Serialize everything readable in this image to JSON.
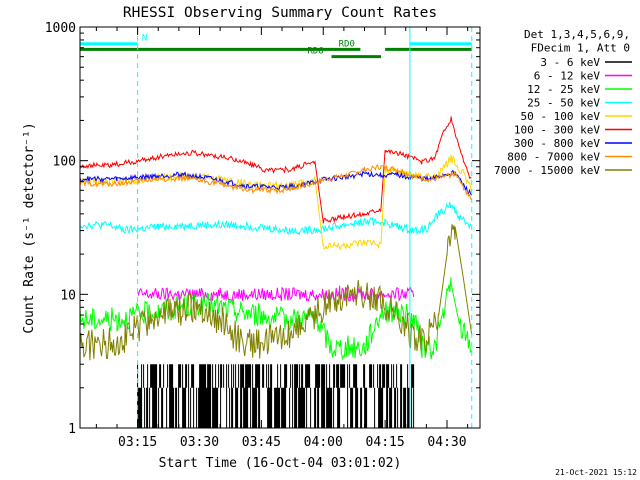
{
  "chart_data": {
    "type": "line",
    "title": "RHESSI Observing Summary Count Rates",
    "xlabel": "Start Time (16-Oct-04 03:01:02)",
    "ylabel": "Count Rate (s⁻¹ detector⁻¹)",
    "y_scale": "log",
    "ylim": [
      1,
      1000
    ],
    "xlim": [
      "03:01:02",
      "04:38:00"
    ],
    "x_tick_labels": [
      "03:15",
      "03:30",
      "03:45",
      "04:00",
      "04:15",
      "04:30"
    ],
    "y_tick_labels": [
      "1",
      "10",
      "100",
      "1000"
    ],
    "legend_position": "right",
    "legend_header": [
      "Det 1,3,4,5,6,9,",
      "FDecim 1, Att 0"
    ],
    "legend_entries": [
      "3 - 6 keV",
      "6 - 12 keV",
      "12 - 25 keV",
      "25 - 50 keV",
      "50 - 100 keV",
      "100 - 300 keV",
      "300 - 800 keV",
      "800 - 7000 keV",
      "7000 - 15000 keV"
    ],
    "series": [
      {
        "name": "3 - 6 keV",
        "color": "#000000",
        "x": [
          "03:15",
          "03:20",
          "03:25",
          "03:30",
          "03:35",
          "03:40",
          "03:45",
          "03:50",
          "03:55",
          "04:00",
          "04:05",
          "04:10",
          "04:15",
          "04:20",
          "04:22"
        ],
        "y": [
          2.5,
          2.5,
          2.5,
          2.5,
          2.5,
          2.5,
          2.5,
          2.5,
          2.5,
          2.5,
          2.5,
          2.5,
          2.5,
          2.5,
          2.5
        ]
      },
      {
        "name": "6 - 12 keV",
        "color": "#ff00ff",
        "x": [
          "03:15",
          "03:20",
          "03:25",
          "03:30",
          "03:35",
          "03:40",
          "03:45",
          "03:50",
          "03:55",
          "04:00",
          "04:05",
          "04:10",
          "04:15",
          "04:20",
          "04:22"
        ],
        "y": [
          10,
          10,
          10,
          10,
          10,
          10,
          10,
          10,
          10,
          10,
          10,
          10,
          10,
          10,
          10
        ]
      },
      {
        "name": "12 - 25 keV",
        "color": "#00ff00",
        "x": [
          "03:01",
          "03:10",
          "03:20",
          "03:30",
          "03:40",
          "03:50",
          "03:58",
          "04:02",
          "04:06",
          "04:10",
          "04:14",
          "04:18",
          "04:22",
          "04:24",
          "04:27",
          "04:29",
          "04:31",
          "04:33",
          "04:36"
        ],
        "y": [
          6.5,
          6.5,
          7.5,
          8.5,
          7.5,
          6.5,
          6.8,
          4,
          4,
          4,
          7.5,
          7.5,
          6.5,
          4,
          4,
          7,
          12,
          6,
          4
        ]
      },
      {
        "name": "25 - 50 keV",
        "color": "#00ffff",
        "x": [
          "03:01",
          "03:08",
          "03:12",
          "03:20",
          "03:30",
          "03:40",
          "03:48",
          "03:52",
          "03:56",
          "04:00",
          "04:05",
          "04:10",
          "04:14",
          "04:18",
          "04:22",
          "04:25",
          "04:28",
          "04:31",
          "04:33",
          "04:36"
        ],
        "y": [
          33,
          33,
          30,
          32,
          33,
          33,
          31,
          30,
          30,
          31,
          33,
          35,
          35,
          32,
          30,
          31,
          40,
          47,
          38,
          32
        ]
      },
      {
        "name": "50 - 100 keV",
        "color": "#ffd700",
        "x": [
          "03:01",
          "03:10",
          "03:20",
          "03:28",
          "03:36",
          "03:44",
          "03:52",
          "03:58",
          "04:00",
          "04:05",
          "04:10",
          "04:14",
          "04:15",
          "04:20",
          "04:24",
          "04:28",
          "04:30",
          "04:31",
          "04:34",
          "04:36"
        ],
        "y": [
          70,
          70,
          74,
          77,
          72,
          65,
          65,
          72,
          23,
          23,
          24,
          24,
          85,
          80,
          75,
          78,
          95,
          105,
          80,
          60
        ]
      },
      {
        "name": "100 - 300 keV",
        "color": "#ff0000",
        "x": [
          "03:01",
          "03:08",
          "03:16",
          "03:22",
          "03:28",
          "03:34",
          "03:40",
          "03:46",
          "03:52",
          "03:58",
          "04:00",
          "04:05",
          "04:10",
          "04:14",
          "04:15",
          "04:20",
          "04:24",
          "04:27",
          "04:29",
          "04:31",
          "04:34",
          "04:36"
        ],
        "y": [
          92,
          92,
          100,
          110,
          115,
          108,
          100,
          85,
          86,
          98,
          35,
          38,
          40,
          44,
          120,
          110,
          98,
          105,
          160,
          205,
          100,
          70
        ]
      },
      {
        "name": "300 - 800 keV",
        "color": "#0000ff",
        "x": [
          "03:01",
          "03:10",
          "03:18",
          "03:26",
          "03:34",
          "03:42",
          "03:50",
          "03:56",
          "04:00",
          "04:05",
          "04:10",
          "04:14",
          "04:18",
          "04:22",
          "04:26",
          "04:29",
          "04:32",
          "04:34",
          "04:36"
        ],
        "y": [
          73,
          73,
          76,
          79,
          72,
          64,
          63,
          67,
          72,
          75,
          80,
          78,
          78,
          75,
          72,
          78,
          82,
          65,
          55
        ]
      },
      {
        "name": "800 - 7000 keV",
        "color": "#ff8c00",
        "x": [
          "03:01",
          "03:10",
          "03:18",
          "03:26",
          "03:34",
          "03:42",
          "03:50",
          "03:56",
          "04:00",
          "04:06",
          "04:10",
          "04:14",
          "04:18",
          "04:22",
          "04:26",
          "04:29",
          "04:32",
          "04:34",
          "04:36"
        ],
        "y": [
          67,
          67,
          72,
          74,
          68,
          60,
          60,
          66,
          72,
          78,
          86,
          90,
          86,
          76,
          72,
          75,
          80,
          63,
          52
        ]
      },
      {
        "name": "7000 - 15000 keV",
        "color": "#808000",
        "x": [
          "03:01",
          "03:06",
          "03:12",
          "03:18",
          "03:24",
          "03:30",
          "03:36",
          "03:40",
          "03:46",
          "03:52",
          "03:58",
          "04:03",
          "04:08",
          "04:13",
          "04:18",
          "04:22",
          "04:25",
          "04:28",
          "04:30",
          "04:32",
          "04:34",
          "04:36"
        ],
        "y": [
          4.2,
          4.2,
          4.8,
          6.5,
          7.5,
          8,
          6,
          4.5,
          4.3,
          5.2,
          7,
          9.5,
          10.5,
          9.5,
          7,
          4.8,
          4.5,
          7,
          20,
          32,
          13,
          5
        ]
      }
    ],
    "mode_bars": [
      {
        "label": "N",
        "color": "#00ffff",
        "y": 750,
        "x_ranges": [
          [
            "03:01",
            "03:15"
          ],
          [
            "04:21",
            "04:36"
          ]
        ]
      },
      {
        "label": "RD0",
        "color": "#008000",
        "y": 680,
        "x_ranges": [
          [
            "03:01",
            "04:09"
          ],
          [
            "04:15",
            "04:36"
          ]
        ]
      },
      {
        "label": "RD6",
        "color": "#008000",
        "y": 600,
        "x_ranges": [
          [
            "04:02",
            "04:14"
          ]
        ]
      }
    ],
    "event_lines": [
      {
        "x": "03:15",
        "style": "dashed",
        "color": "#00ffff"
      },
      {
        "x": "04:21",
        "style": "solid",
        "color": "#00ffff"
      },
      {
        "x": "04:36",
        "style": "dashed",
        "color": "#00ffff"
      }
    ]
  },
  "footer_timestamp": "21-Oct-2021 15:12"
}
